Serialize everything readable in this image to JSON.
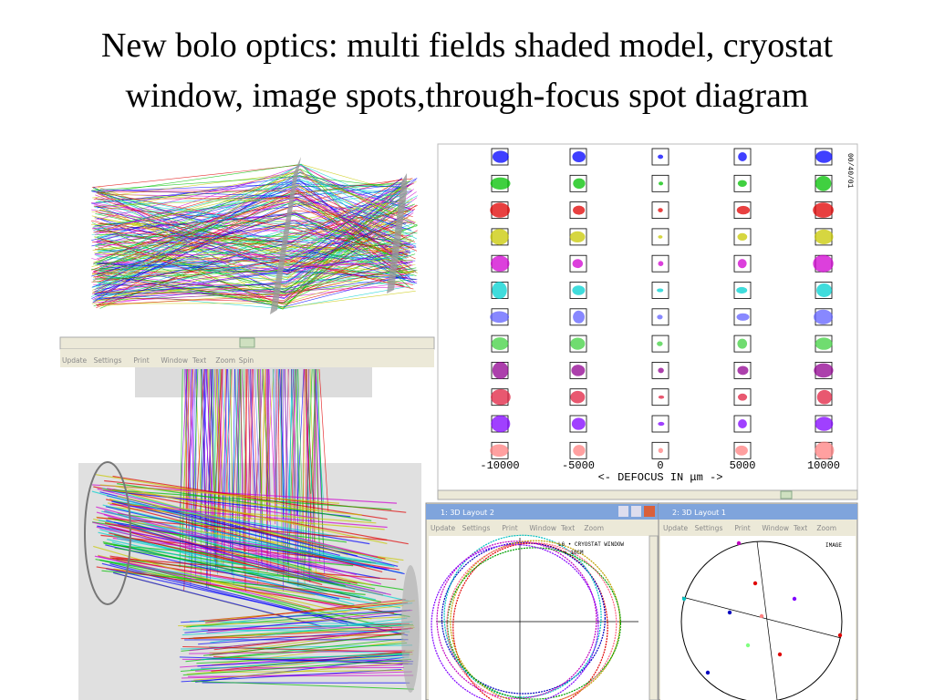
{
  "title": [
    "New bolo optics: multi fields shaded model, cryostat",
    "window, image spots,through-focus spot diagram"
  ],
  "shaded_model": {
    "menu": [
      "Update",
      "Settings",
      "Print",
      "Window",
      "Text",
      "Zoom",
      "Spin"
    ]
  },
  "spot_diagram": {
    "defocus_labels": [
      "-10000",
      "-5000",
      "0",
      "5000",
      "10000"
    ],
    "axis_label": "<- DEFOCUS IN μm ->",
    "corner_note": "00/40/01"
  },
  "window_2": {
    "title": "1: 3D Layout 2",
    "menu": [
      "Update",
      "Settings",
      "Print",
      "Window",
      "Text",
      "Zoom"
    ],
    "notes": [
      "L6 • CRYOSTAT WINDOW",
      "+ 18CM"
    ]
  },
  "window_1": {
    "title": "2: 3D Layout 1",
    "menu": [
      "Update",
      "Settings",
      "Print",
      "Window",
      "Text",
      "Zoom"
    ],
    "note": "IMAGE"
  }
}
